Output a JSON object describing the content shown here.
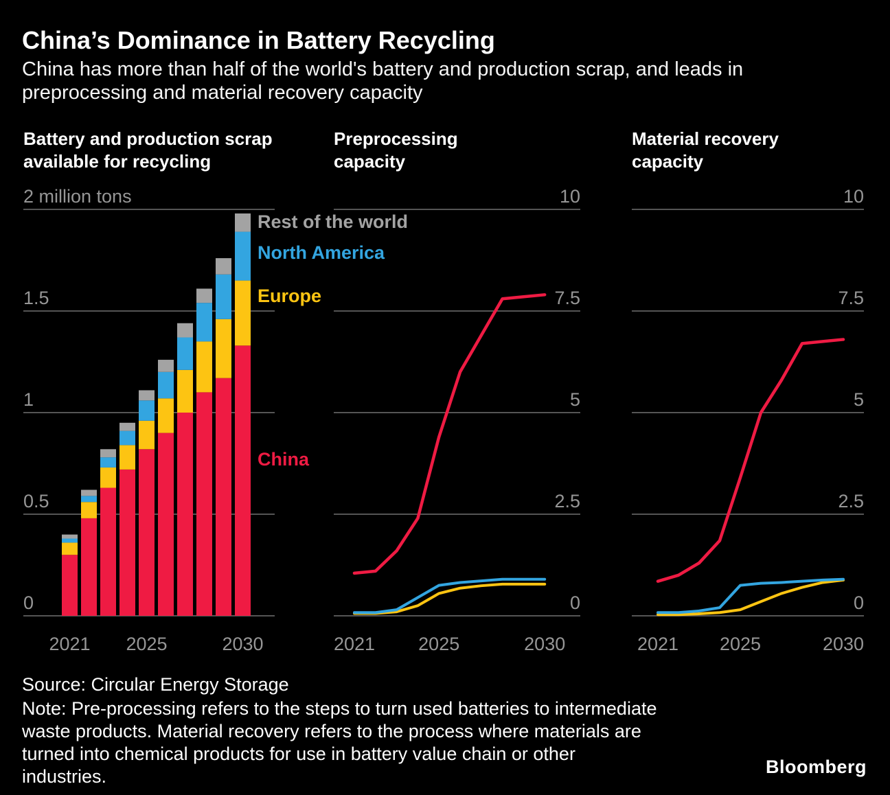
{
  "header": {
    "title": "China’s Dominance in Battery Recycling",
    "subtitle": "China has more than half of the world's battery and production scrap, and leads in preprocessing and material recovery capacity"
  },
  "colors": {
    "china": "#ef1b43",
    "europe": "#fdc412",
    "north_america": "#33a5e0",
    "rest_of_world": "#a3a3a3",
    "grid": "#555555",
    "axis_text": "#969696",
    "background": "#000000",
    "text": "#ffffff"
  },
  "chart_data": [
    {
      "type": "bar",
      "stacked": true,
      "title": "Battery and production scrap available for recycling",
      "unit": "million tons",
      "categories": [
        2021,
        2022,
        2023,
        2024,
        2025,
        2026,
        2027,
        2028,
        2029,
        2030
      ],
      "x_ticks": [
        2021,
        2025,
        2030
      ],
      "ylim": [
        0,
        2
      ],
      "y_ticks": [
        0,
        0.5,
        1,
        1.5,
        2
      ],
      "y_tick_labels": [
        "0",
        "0.5",
        "1",
        "1.5",
        "2 million tons"
      ],
      "series": [
        {
          "name": "China",
          "color": "china",
          "values": [
            0.3,
            0.48,
            0.63,
            0.72,
            0.82,
            0.9,
            1.0,
            1.1,
            1.17,
            1.33
          ]
        },
        {
          "name": "Europe",
          "color": "europe",
          "values": [
            0.06,
            0.08,
            0.1,
            0.12,
            0.14,
            0.17,
            0.21,
            0.25,
            0.29,
            0.32
          ]
        },
        {
          "name": "North America",
          "color": "north_america",
          "values": [
            0.02,
            0.03,
            0.05,
            0.07,
            0.1,
            0.13,
            0.16,
            0.19,
            0.22,
            0.24
          ]
        },
        {
          "name": "Rest of the world",
          "color": "rest_of_world",
          "values": [
            0.02,
            0.03,
            0.04,
            0.04,
            0.05,
            0.06,
            0.07,
            0.07,
            0.08,
            0.09
          ]
        }
      ],
      "annotations": [
        {
          "label": "Rest of the world",
          "color": "rest_of_world"
        },
        {
          "label": "North America",
          "color": "north_america"
        },
        {
          "label": "Europe",
          "color": "europe"
        },
        {
          "label": "China",
          "color": "china"
        }
      ]
    },
    {
      "type": "line",
      "title": "Preprocessing capacity",
      "x": [
        2021,
        2022,
        2023,
        2024,
        2025,
        2026,
        2027,
        2028,
        2029,
        2030
      ],
      "x_ticks": [
        2021,
        2025,
        2030
      ],
      "ylim": [
        0,
        10
      ],
      "y_ticks": [
        0,
        2.5,
        5,
        7.5,
        10
      ],
      "y_tick_labels": [
        "0",
        "2.5",
        "5",
        "7.5",
        "10"
      ],
      "series": [
        {
          "name": "Europe",
          "color": "europe",
          "values": [
            0.06,
            0.06,
            0.1,
            0.25,
            0.55,
            0.68,
            0.74,
            0.78,
            0.78,
            0.78
          ]
        },
        {
          "name": "North America",
          "color": "north_america",
          "values": [
            0.08,
            0.08,
            0.15,
            0.45,
            0.75,
            0.82,
            0.86,
            0.9,
            0.9,
            0.9
          ]
        },
        {
          "name": "China",
          "color": "china",
          "values": [
            1.05,
            1.1,
            1.6,
            2.4,
            4.4,
            6.0,
            6.9,
            7.8,
            7.85,
            7.9
          ]
        }
      ]
    },
    {
      "type": "line",
      "title": "Material recovery capacity",
      "x": [
        2021,
        2022,
        2023,
        2024,
        2025,
        2026,
        2027,
        2028,
        2029,
        2030
      ],
      "x_ticks": [
        2021,
        2025,
        2030
      ],
      "ylim": [
        0,
        10
      ],
      "y_ticks": [
        0,
        2.5,
        5,
        7.5,
        10
      ],
      "y_tick_labels": [
        "0",
        "2.5",
        "5",
        "7.5",
        "10"
      ],
      "series": [
        {
          "name": "Europe",
          "color": "europe",
          "values": [
            0.03,
            0.03,
            0.05,
            0.08,
            0.15,
            0.35,
            0.55,
            0.7,
            0.82,
            0.88
          ]
        },
        {
          "name": "North America",
          "color": "north_america",
          "values": [
            0.08,
            0.08,
            0.12,
            0.2,
            0.75,
            0.8,
            0.82,
            0.85,
            0.88,
            0.9
          ]
        },
        {
          "name": "China",
          "color": "china",
          "values": [
            0.85,
            1.0,
            1.3,
            1.85,
            3.4,
            5.0,
            5.8,
            6.7,
            6.75,
            6.8
          ]
        }
      ]
    }
  ],
  "footer": {
    "source": "Source: Circular Energy Storage",
    "note": "Note: Pre-processing refers to the steps to turn used batteries to intermediate waste products. Material recovery refers to the process where materials are turned into chemical products for use in battery value chain or other industries.",
    "brand": "Bloomberg"
  }
}
